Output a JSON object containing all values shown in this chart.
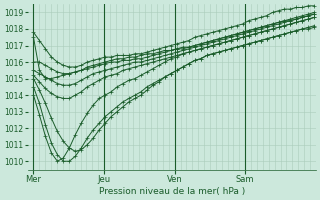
{
  "xlabel": "Pression niveau de la mer( hPa )",
  "background_color": "#cce8dc",
  "grid_color": "#aaccbb",
  "line_color": "#1a5c2a",
  "ylim": [
    1009.5,
    1019.5
  ],
  "yticks": [
    1010,
    1011,
    1012,
    1013,
    1014,
    1015,
    1016,
    1017,
    1018,
    1019
  ],
  "xtick_labels": [
    "Mer",
    "Jeu",
    "Ven",
    "Sam"
  ],
  "xtick_positions": [
    0,
    48,
    96,
    144
  ],
  "xlim": [
    -4,
    192
  ],
  "series": [
    [
      1017.8,
      1017.3,
      1016.8,
      1016.3,
      1016.0,
      1015.8,
      1015.7,
      1015.7,
      1015.8,
      1016.0,
      1016.1,
      1016.2,
      1016.3,
      1016.3,
      1016.4,
      1016.4,
      1016.4,
      1016.5,
      1016.5,
      1016.6,
      1016.7,
      1016.8,
      1016.9,
      1017.0,
      1017.1,
      1017.2,
      1017.3,
      1017.5,
      1017.6,
      1017.7,
      1017.8,
      1017.9,
      1018.0,
      1018.1,
      1018.2,
      1018.3,
      1018.5,
      1018.6,
      1018.7,
      1018.8,
      1019.0,
      1019.1,
      1019.2,
      1019.2,
      1019.3,
      1019.3,
      1019.4,
      1019.4
    ],
    [
      1016.0,
      1016.0,
      1015.8,
      1015.6,
      1015.4,
      1015.3,
      1015.3,
      1015.4,
      1015.5,
      1015.6,
      1015.7,
      1015.8,
      1015.9,
      1016.0,
      1016.0,
      1016.1,
      1016.1,
      1016.2,
      1016.2,
      1016.3,
      1016.4,
      1016.5,
      1016.6,
      1016.7,
      1016.8,
      1016.8,
      1016.9,
      1017.0,
      1017.1,
      1017.2,
      1017.3,
      1017.4,
      1017.5,
      1017.6,
      1017.7,
      1017.8,
      1017.9,
      1018.0,
      1018.1,
      1018.2,
      1018.3,
      1018.4,
      1018.5,
      1018.5,
      1018.6,
      1018.7,
      1018.8,
      1018.9
    ],
    [
      1015.5,
      1015.3,
      1015.1,
      1014.9,
      1014.7,
      1014.6,
      1014.6,
      1014.7,
      1014.9,
      1015.1,
      1015.3,
      1015.4,
      1015.5,
      1015.6,
      1015.7,
      1015.8,
      1015.9,
      1016.0,
      1016.0,
      1016.1,
      1016.2,
      1016.3,
      1016.4,
      1016.5,
      1016.6,
      1016.7,
      1016.8,
      1016.9,
      1017.0,
      1017.1,
      1017.2,
      1017.3,
      1017.4,
      1017.5,
      1017.6,
      1017.7,
      1017.8,
      1017.9,
      1018.0,
      1018.1,
      1018.2,
      1018.3,
      1018.4,
      1018.5,
      1018.6,
      1018.7,
      1018.8,
      1018.9
    ],
    [
      1015.2,
      1014.8,
      1014.4,
      1014.1,
      1013.9,
      1013.8,
      1013.8,
      1014.0,
      1014.2,
      1014.5,
      1014.7,
      1014.9,
      1015.1,
      1015.2,
      1015.3,
      1015.5,
      1015.6,
      1015.7,
      1015.8,
      1015.9,
      1016.0,
      1016.1,
      1016.2,
      1016.3,
      1016.4,
      1016.5,
      1016.6,
      1016.7,
      1016.8,
      1016.9,
      1017.0,
      1017.1,
      1017.2,
      1017.3,
      1017.4,
      1017.5,
      1017.6,
      1017.7,
      1017.8,
      1017.9,
      1018.0,
      1018.1,
      1018.2,
      1018.3,
      1018.4,
      1018.5,
      1018.6,
      1018.7
    ],
    [
      1015.0,
      1014.3,
      1013.5,
      1012.6,
      1011.8,
      1011.2,
      1010.8,
      1010.6,
      1010.7,
      1011.0,
      1011.4,
      1011.9,
      1012.3,
      1012.7,
      1013.0,
      1013.3,
      1013.6,
      1013.8,
      1014.0,
      1014.3,
      1014.6,
      1014.8,
      1015.1,
      1015.3,
      1015.5,
      1015.7,
      1015.9,
      1016.1,
      1016.2,
      1016.4,
      1016.5,
      1016.6,
      1016.7,
      1016.8,
      1016.9,
      1017.0,
      1017.1,
      1017.2,
      1017.3,
      1017.4,
      1017.5,
      1017.6,
      1017.7,
      1017.8,
      1017.9,
      1018.0,
      1018.1,
      1018.2
    ],
    [
      1014.5,
      1013.5,
      1012.2,
      1011.1,
      1010.4,
      1010.0,
      1010.0,
      1010.3,
      1010.8,
      1011.4,
      1011.9,
      1012.3,
      1012.7,
      1013.0,
      1013.3,
      1013.6,
      1013.8,
      1014.0,
      1014.2,
      1014.5,
      1014.7,
      1014.9,
      1015.1,
      1015.3,
      1015.5,
      1015.7,
      1015.9,
      1016.1,
      1016.2,
      1016.4,
      1016.5,
      1016.6,
      1016.7,
      1016.8,
      1016.9,
      1017.0,
      1017.1,
      1017.2,
      1017.3,
      1017.4,
      1017.5,
      1017.6,
      1017.7,
      1017.8,
      1017.9,
      1018.0,
      1018.0,
      1018.1
    ],
    [
      1014.0,
      1012.8,
      1011.5,
      1010.5,
      1010.0,
      1010.2,
      1010.8,
      1011.6,
      1012.3,
      1012.9,
      1013.4,
      1013.8,
      1014.0,
      1014.2,
      1014.5,
      1014.7,
      1014.9,
      1015.0,
      1015.2,
      1015.4,
      1015.6,
      1015.8,
      1016.0,
      1016.2,
      1016.3,
      1016.5,
      1016.6,
      1016.7,
      1016.8,
      1016.9,
      1017.0,
      1017.1,
      1017.2,
      1017.3,
      1017.4,
      1017.5,
      1017.6,
      1017.7,
      1017.8,
      1017.9,
      1018.0,
      1018.1,
      1018.2,
      1018.3,
      1018.4,
      1018.5,
      1018.6,
      1018.7
    ],
    [
      1017.5,
      1015.5,
      1015.0,
      1015.0,
      1015.1,
      1015.2,
      1015.3,
      1015.4,
      1015.5,
      1015.7,
      1015.8,
      1015.9,
      1016.0,
      1016.1,
      1016.2,
      1016.2,
      1016.3,
      1016.3,
      1016.4,
      1016.5,
      1016.5,
      1016.6,
      1016.7,
      1016.7,
      1016.8,
      1016.9,
      1016.9,
      1017.0,
      1017.1,
      1017.2,
      1017.3,
      1017.4,
      1017.5,
      1017.6,
      1017.7,
      1017.8,
      1017.9,
      1018.0,
      1018.1,
      1018.2,
      1018.3,
      1018.4,
      1018.5,
      1018.6,
      1018.7,
      1018.8,
      1018.9,
      1019.0
    ]
  ]
}
